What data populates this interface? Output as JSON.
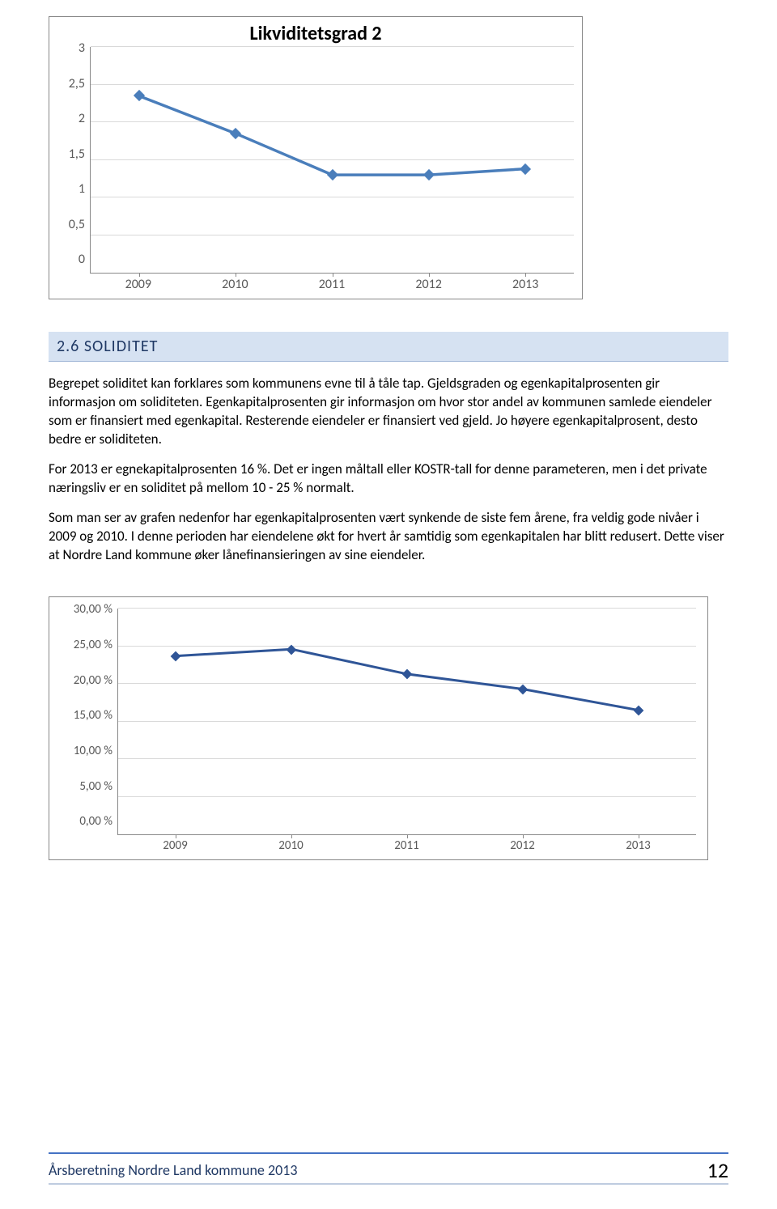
{
  "chart1": {
    "type": "line",
    "title": "Likviditetsgrad 2",
    "title_fontsize": 24,
    "categories": [
      "2009",
      "2010",
      "2011",
      "2012",
      "2013"
    ],
    "values": [
      2.35,
      1.85,
      1.3,
      1.3,
      1.38
    ],
    "ylim": [
      0,
      3
    ],
    "ytick_step": 0.5,
    "ytick_labels": [
      "0",
      "0,5",
      "1",
      "1,5",
      "2",
      "2,5",
      "3"
    ],
    "line_color": "#4a7ebb",
    "marker_color": "#4a7ebb",
    "line_width": 3.5,
    "marker_size": 10,
    "axis_color": "#888888",
    "grid_color": "#d9d9d9",
    "tick_font_color": "#595959",
    "tick_fontsize": 16,
    "background_color": "#ffffff"
  },
  "section": {
    "heading": "2.6 SOLIDITET"
  },
  "paragraphs": {
    "p1": "Begrepet soliditet kan forklares som kommunens evne til å tåle tap. Gjeldsgraden og egenkapitalprosenten gir informasjon om soliditeten. Egenkapitalprosenten gir informasjon om hvor stor andel av kommunen samlede eiendeler som er finansiert med egenkapital. Resterende eiendeler er finansiert ved gjeld. Jo høyere egenkapitalprosent, desto bedre er soliditeten.",
    "p2": "For 2013 er egnekapitalprosenten 16 %. Det er ingen måltall eller KOSTR-tall for denne parameteren, men i det private næringsliv er en soliditet på mellom 10 - 25 % normalt.",
    "p3": "Som man ser av grafen nedenfor har egenkapitalprosenten vært synkende de siste fem årene, fra veldig gode nivåer i 2009 og 2010. I denne perioden har eiendelene økt for hvert år samtidig som egenkapitalen har blitt redusert. Dette viser at Nordre Land kommune øker lånefinansieringen av sine eiendeler."
  },
  "chart2": {
    "type": "line",
    "categories": [
      "2009",
      "2010",
      "2011",
      "2012",
      "2013"
    ],
    "values": [
      23.7,
      24.6,
      21.3,
      19.3,
      16.5
    ],
    "ylim": [
      0,
      30
    ],
    "ytick_step": 5,
    "ytick_labels": [
      "0,00 %",
      "5,00 %",
      "10,00 %",
      "15,00 %",
      "20,00 %",
      "25,00 %",
      "30,00 %"
    ],
    "line_color": "#2f5597",
    "marker_color": "#2f5597",
    "line_width": 3,
    "marker_size": 9,
    "axis_color": "#888888",
    "grid_color": "#d9d9d9",
    "tick_font_color": "#595959",
    "tick_fontsize": 15,
    "background_color": "#ffffff"
  },
  "footer": {
    "text": "Årsberetning Nordre Land kommune 2013",
    "page_number": "12"
  }
}
